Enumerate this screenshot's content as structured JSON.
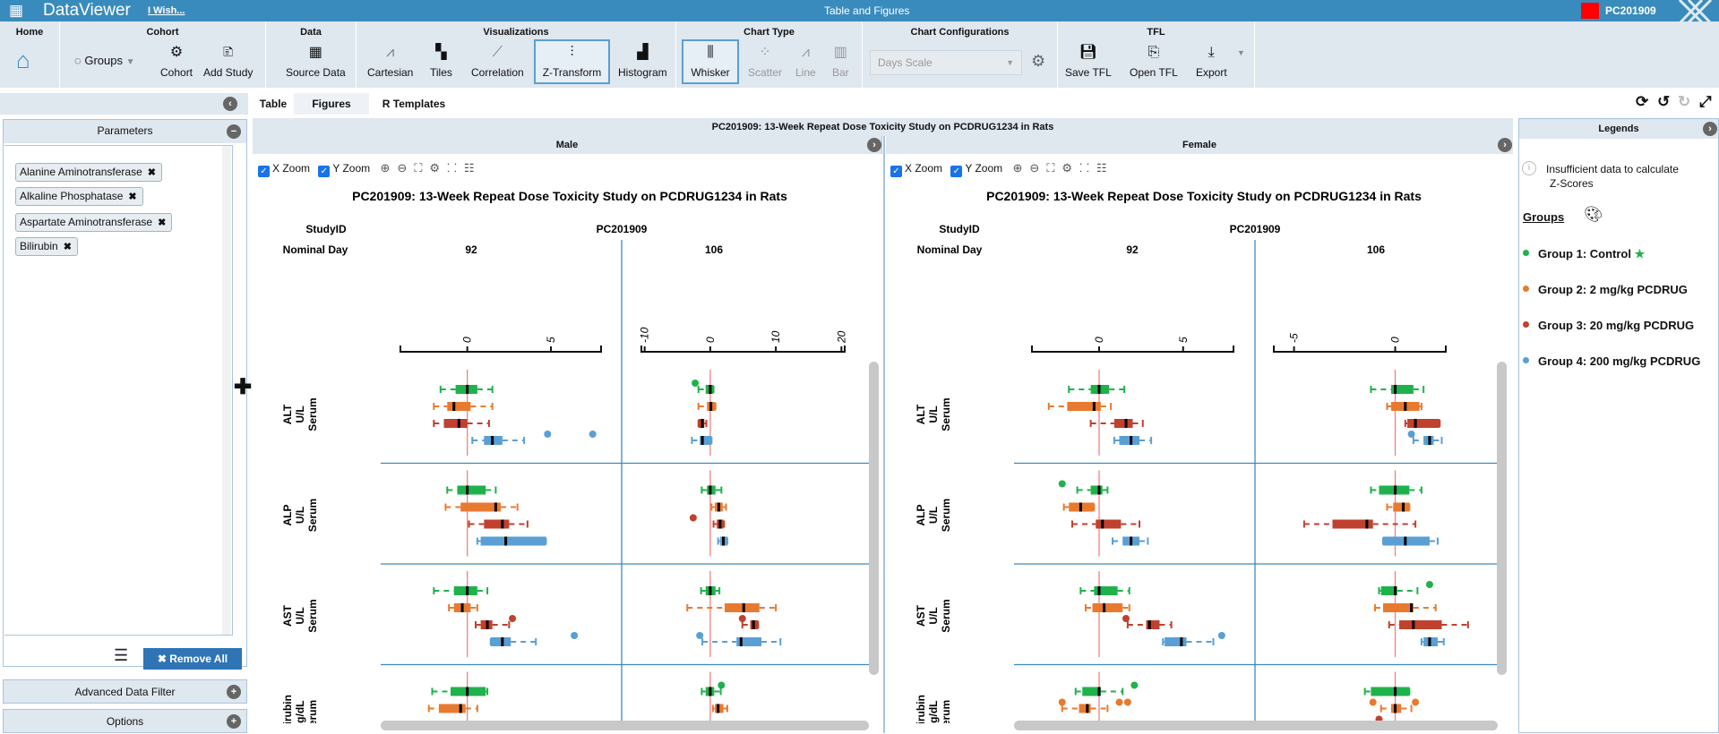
{
  "app": {
    "name": "DataViewer",
    "wish_link": "I Wish...",
    "window_title": "Table and Figures",
    "study_badge": "PC201909",
    "badge_color": "#ff0000"
  },
  "toolbar": {
    "home": {
      "title": "Home"
    },
    "cohort": {
      "title": "Cohort",
      "groups": "Groups",
      "cohort": "Cohort",
      "add_study": "Add Study"
    },
    "data": {
      "title": "Data",
      "source_data": "Source Data"
    },
    "visualizations": {
      "title": "Visualizations",
      "cartesian": "Cartesian",
      "tiles": "Tiles",
      "correlation": "Correlation",
      "z_transform": "Z-Transform",
      "histogram": "Histogram",
      "selected": "Z-Transform"
    },
    "chart_type": {
      "title": "Chart Type",
      "whisker": "Whisker",
      "scatter": "Scatter",
      "line": "Line",
      "bar": "Bar",
      "selected": "Whisker"
    },
    "chart_config": {
      "title": "Chart Configurations",
      "scale_select": "Days Scale"
    },
    "tfl": {
      "title": "TFL",
      "save": "Save TFL",
      "open": "Open TFL",
      "export": "Export"
    }
  },
  "tabs": [
    {
      "label": "Table"
    },
    {
      "label": "Figures",
      "active": true
    },
    {
      "label": "R Templates"
    }
  ],
  "left_panel": {
    "parameters_title": "Parameters",
    "parameters": [
      "Alanine Aminotransferase",
      "Alkaline Phosphatase",
      "Aspartate Aminotransferase",
      "Bilirubin"
    ],
    "remove_all": "Remove All",
    "advanced_filter": "Advanced Data Filter",
    "options": "Options"
  },
  "figure": {
    "header": "PC201909: 13-Week Repeat Dose Toxicity Study on PCDRUG1234 in Rats",
    "x_zoom": "X Zoom",
    "y_zoom": "Y Zoom",
    "study_id_label": "StudyID",
    "study_id": "PC201909",
    "nominal_day_label": "Nominal Day"
  },
  "legends": {
    "title": "Legends",
    "info": "Insufficient data to calculate",
    "info2": "Z-Scores",
    "groups_label": "Groups",
    "groups": [
      {
        "label": "Group 1: Control",
        "color": "#1fb24b",
        "star": "★"
      },
      {
        "label": "Group 2: 2 mg/kg PCDRUG",
        "color": "#e87a30"
      },
      {
        "label": "Group 3: 20 mg/kg PCDRUG",
        "color": "#c0412d"
      },
      {
        "label": "Group 4: 200 mg/kg PCDRUG",
        "color": "#5a9fd4"
      }
    ]
  },
  "chart_data": [
    {
      "type": "boxplot",
      "panel": "Male",
      "title": "PC201909: 13-Week Repeat Dose Toxicity Study on PCDRUG1234 in Rats",
      "params": [
        {
          "name": "ALT",
          "unit": "U/L",
          "specimen": "Serum"
        },
        {
          "name": "ALP",
          "unit": "U/L",
          "specimen": "Serum"
        },
        {
          "name": "AST",
          "unit": "U/L",
          "specimen": "Serum"
        },
        {
          "name": "Bilirubin",
          "unit": "mg/dL",
          "specimen": "Serum"
        }
      ],
      "days": [
        {
          "day": "92",
          "xlim": [
            -4,
            8
          ],
          "ticks": [
            0,
            5
          ],
          "boxes": [
            [
              [
                -1.6,
                -0.7,
                0,
                0.6,
                1.5,
                []
              ],
              [
                -2.0,
                -1.2,
                -0.8,
                0.2,
                1.5,
                []
              ],
              [
                -2.0,
                -1.4,
                -0.5,
                0,
                1.3,
                []
              ],
              [
                0.3,
                1.0,
                1.5,
                2.1,
                3.4,
                [
                  4.8,
                  7.5
                ]
              ]
            ],
            [
              [
                -1.2,
                -0.6,
                0,
                1.1,
                1.7,
                []
              ],
              [
                -1.3,
                -0.4,
                1.7,
                2.0,
                3.0,
                []
              ],
              [
                0.1,
                1.0,
                2.1,
                2.5,
                3.6,
                []
              ],
              [
                0.6,
                0.8,
                2.3,
                4.7,
                4.7,
                []
              ]
            ],
            [
              [
                -2.0,
                -0.8,
                0,
                0.6,
                1.2,
                []
              ],
              [
                -1.1,
                -0.8,
                -0.3,
                0.2,
                0.6,
                []
              ],
              [
                0.5,
                0.8,
                1.2,
                1.5,
                2.5,
                [
                  2.7
                ]
              ],
              [
                1.4,
                1.4,
                2.1,
                2.6,
                4.1,
                [
                  6.4
                ]
              ]
            ],
            [
              [
                -2.1,
                -1.0,
                0,
                1.1,
                1.2,
                []
              ],
              [
                -2.3,
                -1.7,
                -0.4,
                -0.1,
                0.6,
                []
              ],
              null,
              null
            ]
          ]
        },
        {
          "day": "106",
          "xlim": [
            -10.5,
            20.5
          ],
          "ticks": [
            -10,
            0,
            10,
            20
          ],
          "boxes": [
            [
              [
                -1.8,
                -0.7,
                0,
                0.5,
                0.5,
                [
                  -2.3
                ]
              ],
              [
                -1.8,
                -0.5,
                0.1,
                0.8,
                0.8,
                []
              ],
              [
                -1.8,
                -1.8,
                -1.2,
                -0.9,
                -0.6,
                []
              ],
              [
                -2.8,
                -1.6,
                -1.2,
                0.2,
                0.2,
                []
              ]
            ],
            [
              [
                -1.3,
                -0.5,
                0,
                0.8,
                1.7,
                []
              ],
              [
                0.2,
                0.7,
                1.3,
                1.9,
                2.4,
                []
              ],
              [
                0.5,
                1.0,
                1.5,
                2.0,
                2.1,
                [
                  -2.6
                ]
              ],
              [
                1.2,
                1.5,
                2.0,
                2.6,
                2.6,
                []
              ]
            ],
            [
              [
                -1.4,
                -0.7,
                0,
                0.8,
                1.4,
                []
              ],
              [
                -3.5,
                2.2,
                5.1,
                7.5,
                10.0,
                []
              ],
              [
                4.9,
                6.1,
                6.6,
                7.3,
                7.3,
                [
                  4.9
                ]
              ],
              [
                -1.2,
                4.0,
                4.7,
                7.8,
                10.7,
                [
                  -1.6
                ]
              ]
            ],
            [
              [
                -1.3,
                -0.7,
                0,
                0.6,
                1.6,
                [
                  1.7
                ]
              ],
              [
                0.4,
                0.7,
                1.2,
                2.0,
                2.6,
                []
              ],
              null,
              null
            ]
          ]
        }
      ]
    },
    {
      "type": "boxplot",
      "panel": "Female",
      "title": "PC201909: 13-Week Repeat Dose Toxicity Study on PCDRUG1234 in Rats",
      "params": [
        {
          "name": "ALT",
          "unit": "U/L",
          "specimen": "Serum"
        },
        {
          "name": "ALP",
          "unit": "U/L",
          "specimen": "Serum"
        },
        {
          "name": "AST",
          "unit": "U/L",
          "specimen": "Serum"
        },
        {
          "name": "Bilirubin",
          "unit": "mg/dL",
          "specimen": "Serum"
        }
      ],
      "days": [
        {
          "day": "92",
          "xlim": [
            -4,
            8
          ],
          "ticks": [
            0,
            5
          ],
          "boxes": [
            [
              [
                -1.8,
                -0.5,
                0,
                0.6,
                1.5,
                []
              ],
              [
                -3.0,
                -1.9,
                -0.3,
                0.1,
                0.7,
                []
              ],
              [
                -0.5,
                0.9,
                1.6,
                2.0,
                2.6,
                []
              ],
              [
                0.9,
                1.2,
                1.9,
                2.4,
                3.1,
                []
              ]
            ],
            [
              [
                -1.3,
                -0.5,
                0,
                0.2,
                0.5,
                [
                  -2.2
                ]
              ],
              [
                -2.1,
                -1.8,
                -1.1,
                -0.3,
                -0.3,
                []
              ],
              [
                -1.6,
                -0.2,
                0.2,
                1.3,
                2.4,
                []
              ],
              [
                0.8,
                1.4,
                1.9,
                2.4,
                2.9,
                []
              ]
            ],
            [
              [
                -1.1,
                -0.3,
                0,
                1.1,
                1.8,
                []
              ],
              [
                -0.8,
                -0.4,
                0.3,
                1.4,
                1.8,
                []
              ],
              [
                1.7,
                2.8,
                3.0,
                3.6,
                4.3,
                [
                  1.6
                ]
              ],
              [
                3.8,
                3.9,
                4.9,
                5.2,
                6.8,
                [
                  7.3
                ]
              ]
            ],
            [
              [
                -1.4,
                -1.0,
                0,
                0.1,
                1.4,
                [
                  2.1
                ]
              ],
              [
                -2.2,
                -1.2,
                -0.7,
                -0.5,
                0.5,
                [
                  -2.2,
                  1.2,
                  1.7
                ]
              ],
              null,
              null
            ]
          ]
        },
        {
          "day": "106",
          "xlim": [
            -6,
            2.5
          ],
          "ticks": [
            -5,
            0
          ],
          "boxes": [
            [
              [
                -1.2,
                -0.2,
                0,
                0.9,
                1.4,
                []
              ],
              [
                -0.4,
                -0.2,
                0.5,
                1.2,
                1.3,
                []
              ],
              [
                0.5,
                0.6,
                1.0,
                2.2,
                2.2,
                []
              ],
              [
                0.9,
                1.4,
                1.7,
                1.9,
                2.3,
                [
                  0.8
                ]
              ]
            ],
            [
              [
                -1.2,
                -0.8,
                0,
                0.7,
                1.3,
                []
              ],
              [
                -0.4,
                -0.1,
                0.4,
                0.7,
                0.7,
                []
              ],
              [
                -4.5,
                -3.1,
                -1.4,
                -1.1,
                1.0,
                []
              ],
              [
                -0.6,
                -0.6,
                0.5,
                1.7,
                2.1,
                []
              ]
            ],
            [
              [
                -0.8,
                -0.7,
                0,
                0.1,
                1.1,
                [
                  1.7
                ]
              ],
              [
                -1.0,
                -0.6,
                0.8,
                0.9,
                2.0,
                []
              ],
              [
                -0.3,
                0.2,
                0.9,
                2.3,
                3.6,
                []
              ],
              [
                1.3,
                1.4,
                1.7,
                2.1,
                2.4,
                []
              ]
            ],
            [
              [
                -1.5,
                -1.2,
                0,
                0.7,
                0.7,
                []
              ],
              [
                -0.7,
                -0.2,
                0,
                0.3,
                0.8,
                [
                  -1.1,
                  1.0
                ]
              ],
              [
                null,
                null,
                null,
                null,
                null,
                [
                  -0.8
                ]
              ],
              null
            ]
          ]
        }
      ]
    }
  ]
}
